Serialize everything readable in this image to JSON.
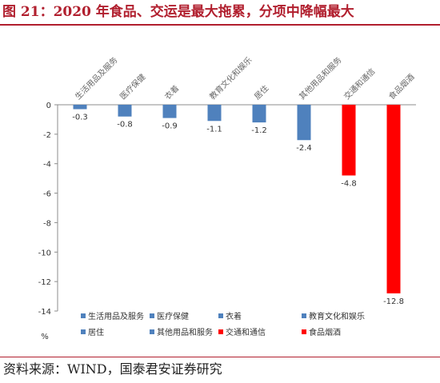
{
  "figure": {
    "title": "图 21：2020 年食品、交运是最大拖累，分项中降幅最大",
    "source": "资料来源：WIND，国泰君安证券研究"
  },
  "chart_data": {
    "type": "bar",
    "categories": [
      "生活用品及服务",
      "医疗保健",
      "衣着",
      "教育文化和娱乐",
      "居住",
      "其他用品和服务",
      "交通和通信",
      "食品烟酒"
    ],
    "values": [
      -0.3,
      -0.8,
      -0.9,
      -1.1,
      -1.2,
      -2.4,
      -4.8,
      -12.8
    ],
    "value_labels": [
      "-0.3",
      "-0.8",
      "-0.9",
      "-1.1",
      "-1.2",
      "-2.4",
      "-4.8",
      "-12.8"
    ],
    "colors": [
      "#4f81bd",
      "#4f81bd",
      "#4f81bd",
      "#4f81bd",
      "#4f81bd",
      "#4f81bd",
      "#ff0000",
      "#ff0000"
    ],
    "ylim": [
      -14,
      0
    ],
    "yticks": [
      0,
      -2,
      -4,
      -6,
      -8,
      -10,
      -12,
      -14
    ],
    "ytick_labels": [
      "0",
      "-2",
      "-4",
      "-6",
      "-8",
      "-10",
      "-12",
      "-14"
    ],
    "yunit": "%",
    "grid": false,
    "legend": {
      "position": "bottom",
      "columns": 4,
      "entries": [
        "生活用品及服务",
        "医疗保健",
        "衣着",
        "教育文化和娱乐",
        "居住",
        "其他用品和服务",
        "交通和通信",
        "食品烟酒"
      ]
    }
  }
}
